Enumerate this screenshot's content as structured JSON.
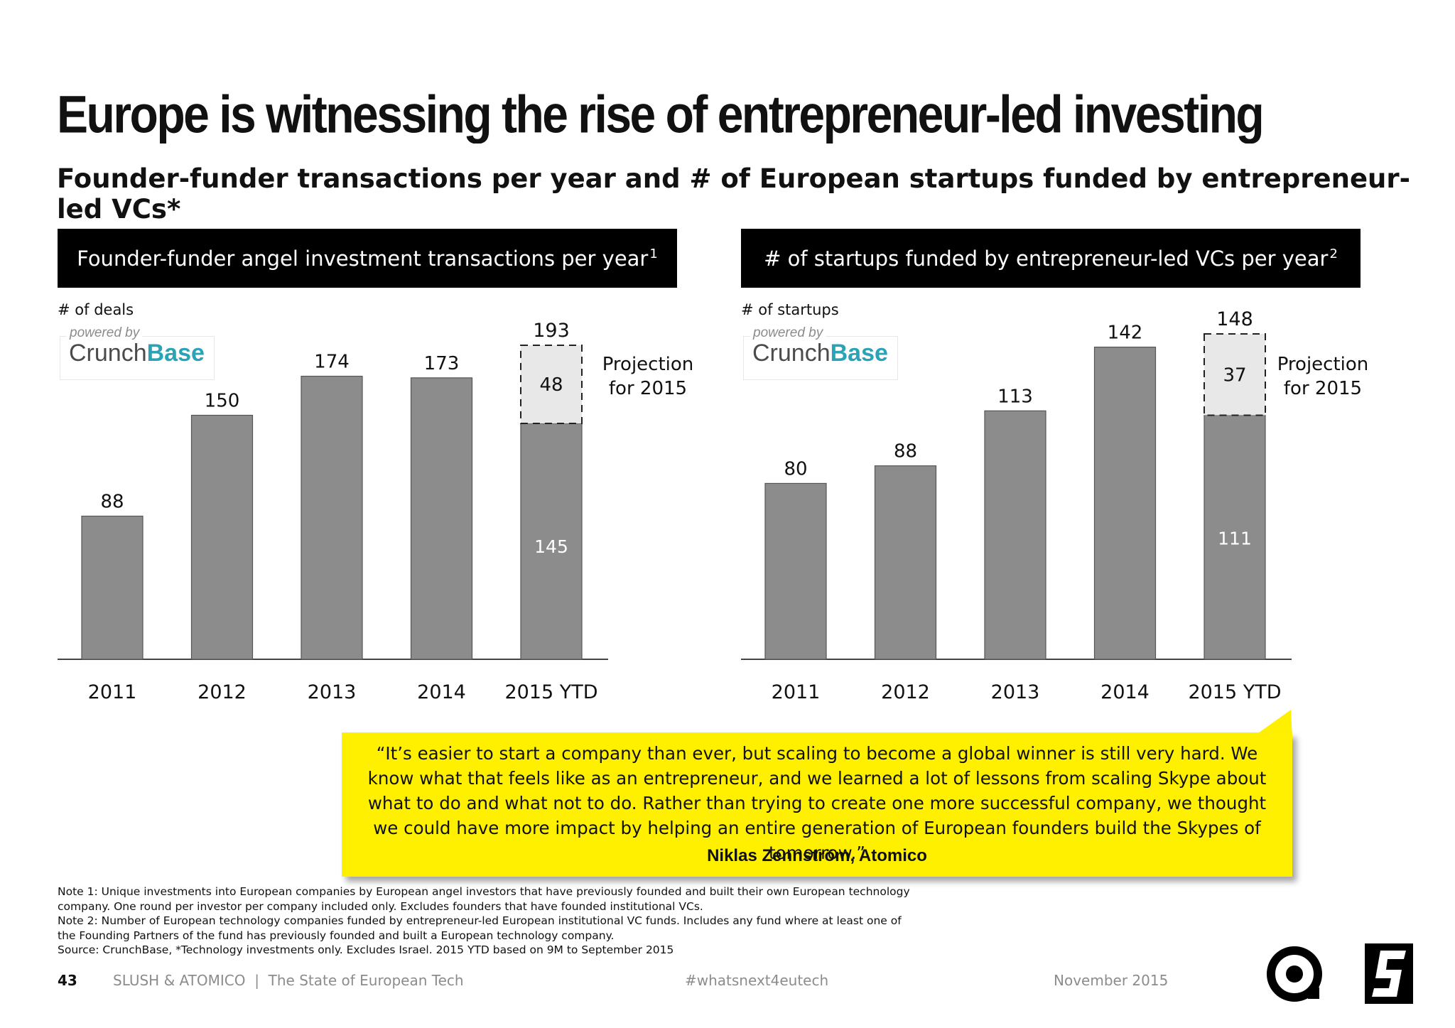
{
  "title": "Europe is witnessing the rise of entrepreneur-led investing",
  "subtitle": "Founder-funder transactions per year and # of European startups funded by entrepreneur-led VCs*",
  "colors": {
    "bar": "#8c8c8c",
    "projection": "#e8e8e8",
    "quote_bg": "#fff000",
    "crunchbase_accent": "#2aa3b7"
  },
  "logo": {
    "powered_by": "powered by",
    "name_part1": "Crunch",
    "name_part2": "Base"
  },
  "projection_label": {
    "line1": "Projection",
    "line2": "for 2015"
  },
  "chart_data": [
    {
      "type": "bar",
      "title": "Founder-funder angel investment transactions per year",
      "title_note": "1",
      "ylabel": "# of deals",
      "categories": [
        "2011",
        "2012",
        "2013",
        "2014",
        "2015 YTD"
      ],
      "series": [
        {
          "values": [
            88,
            150,
            174,
            173,
            145
          ],
          "labels": [
            "88",
            "150",
            "174",
            "173",
            "145"
          ]
        },
        {
          "name": "Projection for 2015",
          "values": [
            0,
            0,
            0,
            0,
            48
          ],
          "labels": [
            "",
            "",
            "",
            "",
            "48"
          ]
        }
      ],
      "totals": [
        "",
        "",
        "",
        "",
        "193"
      ],
      "ylim": [
        0,
        200
      ]
    },
    {
      "type": "bar",
      "title": "# of startups funded by entrepreneur-led VCs per year",
      "title_note": "2",
      "ylabel": "# of startups",
      "categories": [
        "2011",
        "2012",
        "2013",
        "2014",
        "2015 YTD"
      ],
      "series": [
        {
          "values": [
            80,
            88,
            113,
            142,
            111
          ],
          "labels": [
            "80",
            "88",
            "113",
            "142",
            "111"
          ]
        },
        {
          "name": "Projection for 2015",
          "values": [
            0,
            0,
            0,
            0,
            37
          ],
          "labels": [
            "",
            "",
            "",
            "",
            "37"
          ]
        }
      ],
      "totals": [
        "",
        "",
        "",
        "",
        "148"
      ],
      "ylim": [
        0,
        148
      ]
    }
  ],
  "quote": {
    "text": "“It’s easier to start a company than ever, but scaling to become a global winner is still very hard. We know what that feels like as an entrepreneur, and we learned a lot of lessons from scaling Skype about what to do and what not to do. Rather than trying to create one more successful company, we thought we could have more impact by helping an entire generation of European founders build the Skypes of tomorrow.”",
    "author": "Niklas Zennström, Atomico"
  },
  "notes": [
    "Note 1: Unique investments into European companies by European angel investors that have previously founded and built their own European technology company. One round per investor per company included only. Excludes founders that have founded institutional VCs.",
    "Note 2: Number of European technology companies funded by entrepreneur-led European institutional VC funds. Includes any fund where at least one of the Founding Partners of the fund has previously founded and built a European technology company.",
    "Source: CrunchBase, *Technology investments only. Excludes Israel. 2015 YTD based on 9M to September 2015"
  ],
  "footer": {
    "page_number": "43",
    "brand": "SLUSH & ATOMICO  |  The State of European Tech",
    "hashtag": "#whatsnext4eutech",
    "date": "November 2015"
  }
}
